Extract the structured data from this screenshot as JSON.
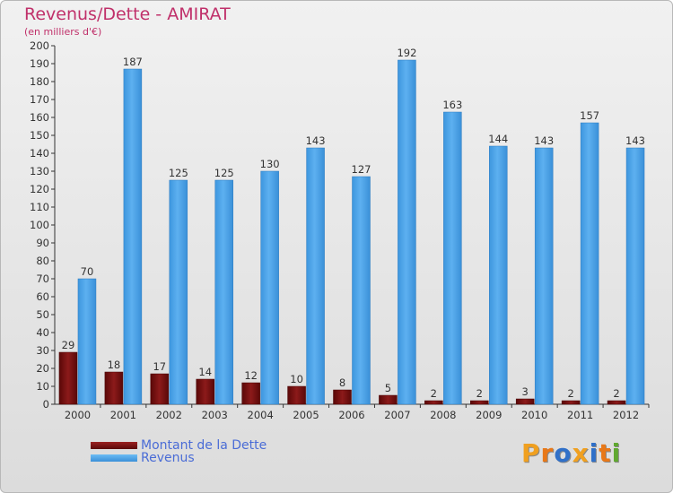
{
  "title": "Revenus/Dette - AMIRAT",
  "subtitle": "(en milliers d'€)",
  "logo": {
    "text": "Proxiti",
    "colors": [
      "#f0a020",
      "#e87818",
      "#3070c8",
      "#f0a020",
      "#3070c8",
      "#e87818",
      "#60a830"
    ]
  },
  "chart_data": {
    "type": "bar",
    "categories": [
      "2000",
      "2001",
      "2002",
      "2003",
      "2004",
      "2005",
      "2006",
      "2007",
      "2008",
      "2009",
      "2010",
      "2011",
      "2012"
    ],
    "series": [
      {
        "name": "Montant de la Dette",
        "color": "#7a1010",
        "values": [
          29,
          18,
          17,
          14,
          12,
          10,
          8,
          5,
          2,
          2,
          3,
          2,
          2
        ]
      },
      {
        "name": "Revenus",
        "color": "#4aa3e8",
        "values": [
          70,
          187,
          125,
          125,
          130,
          143,
          127,
          192,
          163,
          144,
          143,
          157,
          143
        ]
      }
    ],
    "ylim": [
      0,
      200
    ],
    "yticks": [
      0,
      10,
      20,
      30,
      40,
      50,
      60,
      70,
      80,
      90,
      100,
      110,
      120,
      130,
      140,
      150,
      160,
      170,
      180,
      190,
      200
    ],
    "grid": false,
    "legend": "bottom-left"
  }
}
